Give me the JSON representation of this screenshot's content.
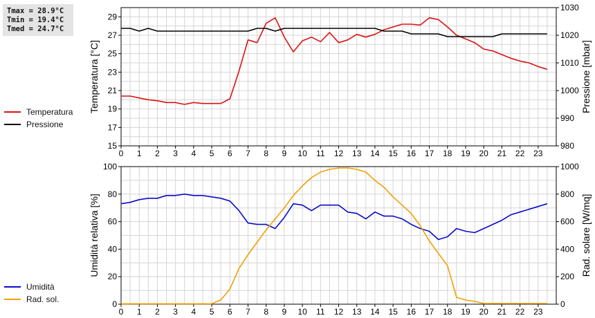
{
  "stats": {
    "tmax": "Tmax = 28.9°C",
    "tmin": "Tmin = 19.4°C",
    "tmed": "Tmed = 24.7°C"
  },
  "colors": {
    "temperatura": "#dd1111",
    "pressione": "#000000",
    "umidita": "#0a0acc",
    "radsol": "#f0a000",
    "grid": "#d4d4d4"
  },
  "chart_data": [
    {
      "type": "line",
      "legend": "left",
      "grid": true,
      "xlim": [
        0,
        24
      ],
      "xticks": [
        0,
        1,
        2,
        3,
        4,
        5,
        6,
        7,
        8,
        9,
        10,
        11,
        12,
        13,
        14,
        15,
        16,
        17,
        18,
        19,
        20,
        21,
        22,
        23
      ],
      "ylabel_left": "Temperatura [°C]",
      "ylim_left": [
        15,
        30
      ],
      "yticks_left": [
        15,
        17,
        19,
        21,
        23,
        25,
        27,
        29
      ],
      "ylabel_right": "Pressione [mbar]",
      "ylim_right": [
        980,
        1030
      ],
      "yticks_right": [
        980,
        990,
        1000,
        1010,
        1020,
        1030
      ],
      "series": [
        {
          "name": "Temperatura",
          "axis": "left",
          "color": "#dd1111",
          "points": [
            [
              0,
              20.4
            ],
            [
              0.5,
              20.4
            ],
            [
              1,
              20.2
            ],
            [
              1.5,
              20.0
            ],
            [
              2,
              19.9
            ],
            [
              2.5,
              19.7
            ],
            [
              3,
              19.7
            ],
            [
              3.5,
              19.5
            ],
            [
              4,
              19.7
            ],
            [
              4.5,
              19.6
            ],
            [
              5,
              19.6
            ],
            [
              5.5,
              19.6
            ],
            [
              6,
              20.1
            ],
            [
              6.5,
              23.1
            ],
            [
              7,
              26.5
            ],
            [
              7.5,
              26.2
            ],
            [
              8,
              28.3
            ],
            [
              8.5,
              28.9
            ],
            [
              9,
              26.8
            ],
            [
              9.5,
              25.2
            ],
            [
              10,
              26.4
            ],
            [
              10.5,
              26.8
            ],
            [
              11,
              26.3
            ],
            [
              11.5,
              27.3
            ],
            [
              12,
              26.2
            ],
            [
              12.5,
              26.5
            ],
            [
              13,
              27.1
            ],
            [
              13.5,
              26.8
            ],
            [
              14,
              27.1
            ],
            [
              14.5,
              27.6
            ],
            [
              15,
              27.9
            ],
            [
              15.5,
              28.2
            ],
            [
              16,
              28.2
            ],
            [
              16.5,
              28.1
            ],
            [
              17,
              28.9
            ],
            [
              17.5,
              28.7
            ],
            [
              18,
              27.9
            ],
            [
              18.5,
              27.0
            ],
            [
              19,
              26.6
            ],
            [
              19.5,
              26.2
            ],
            [
              20,
              25.5
            ],
            [
              20.5,
              25.3
            ],
            [
              21,
              24.9
            ],
            [
              21.5,
              24.5
            ],
            [
              22,
              24.2
            ],
            [
              22.5,
              24.0
            ],
            [
              23,
              23.6
            ],
            [
              23.5,
              23.3
            ]
          ]
        },
        {
          "name": "Pressione",
          "axis": "right",
          "color": "#000000",
          "points": [
            [
              0,
              1022.5
            ],
            [
              0.5,
              1022.5
            ],
            [
              1,
              1021.5
            ],
            [
              1.5,
              1022.5
            ],
            [
              2,
              1021.5
            ],
            [
              2.5,
              1021.5
            ],
            [
              7,
              1021.5
            ],
            [
              7.5,
              1022.5
            ],
            [
              8,
              1022.5
            ],
            [
              8.5,
              1021.5
            ],
            [
              9,
              1022.5
            ],
            [
              14,
              1022.5
            ],
            [
              14.5,
              1021.5
            ],
            [
              15.5,
              1021.5
            ],
            [
              16,
              1020.5
            ],
            [
              17.5,
              1020.5
            ],
            [
              18,
              1019.5
            ],
            [
              20.5,
              1019.5
            ],
            [
              21,
              1020.5
            ],
            [
              23.5,
              1020.5
            ]
          ]
        }
      ]
    },
    {
      "type": "line",
      "legend": "left",
      "grid": true,
      "xlim": [
        0,
        24
      ],
      "xticks": [
        0,
        1,
        2,
        3,
        4,
        5,
        6,
        7,
        8,
        9,
        10,
        11,
        12,
        13,
        14,
        15,
        16,
        17,
        18,
        19,
        20,
        21,
        22,
        23
      ],
      "ylabel_left": "Umidità relativa [%]",
      "ylim_left": [
        0,
        100
      ],
      "yticks_left": [
        0,
        20,
        40,
        60,
        80,
        100
      ],
      "ylabel_right": "Rad. solare [W/mq]",
      "ylim_right": [
        0,
        1000
      ],
      "yticks_right": [
        0,
        200,
        400,
        600,
        800,
        1000
      ],
      "series": [
        {
          "name": "Umidità",
          "axis": "left",
          "color": "#0a0acc",
          "points": [
            [
              0,
              73
            ],
            [
              0.5,
              74
            ],
            [
              1,
              76
            ],
            [
              1.5,
              77
            ],
            [
              2,
              77
            ],
            [
              2.5,
              79
            ],
            [
              3,
              79
            ],
            [
              3.5,
              80
            ],
            [
              4,
              79
            ],
            [
              4.5,
              79
            ],
            [
              5,
              78
            ],
            [
              5.5,
              77
            ],
            [
              6,
              75
            ],
            [
              6.5,
              68
            ],
            [
              7,
              59
            ],
            [
              7.5,
              58
            ],
            [
              8,
              58
            ],
            [
              8.5,
              55
            ],
            [
              9,
              63
            ],
            [
              9.5,
              73
            ],
            [
              10,
              72
            ],
            [
              10.5,
              68
            ],
            [
              11,
              72
            ],
            [
              11.5,
              72
            ],
            [
              12,
              72
            ],
            [
              12.5,
              67
            ],
            [
              13,
              66
            ],
            [
              13.5,
              62
            ],
            [
              14,
              67
            ],
            [
              14.5,
              64
            ],
            [
              15,
              64
            ],
            [
              15.5,
              62
            ],
            [
              16,
              58
            ],
            [
              16.5,
              55
            ],
            [
              17,
              53
            ],
            [
              17.5,
              47
            ],
            [
              18,
              49
            ],
            [
              18.5,
              55
            ],
            [
              19,
              53
            ],
            [
              19.5,
              52
            ],
            [
              20,
              55
            ],
            [
              20.5,
              58
            ],
            [
              21,
              61
            ],
            [
              21.5,
              65
            ],
            [
              22,
              67
            ],
            [
              22.5,
              69
            ],
            [
              23,
              71
            ],
            [
              23.5,
              73
            ]
          ]
        },
        {
          "name": "Rad. sol.",
          "axis": "right",
          "color": "#f0a000",
          "points": [
            [
              0,
              3
            ],
            [
              5,
              3
            ],
            [
              5.5,
              30
            ],
            [
              6,
              110
            ],
            [
              6.5,
              260
            ],
            [
              7,
              360
            ],
            [
              7.5,
              450
            ],
            [
              8,
              540
            ],
            [
              8.5,
              620
            ],
            [
              9,
              700
            ],
            [
              9.5,
              790
            ],
            [
              10,
              860
            ],
            [
              10.5,
              920
            ],
            [
              11,
              960
            ],
            [
              11.5,
              980
            ],
            [
              12,
              990
            ],
            [
              12.5,
              990
            ],
            [
              13,
              980
            ],
            [
              13.5,
              960
            ],
            [
              14,
              900
            ],
            [
              14.5,
              850
            ],
            [
              15,
              780
            ],
            [
              15.5,
              720
            ],
            [
              16,
              660
            ],
            [
              16.5,
              570
            ],
            [
              17,
              460
            ],
            [
              17.5,
              370
            ],
            [
              18,
              280
            ],
            [
              18.5,
              50
            ],
            [
              19,
              30
            ],
            [
              19.5,
              20
            ],
            [
              20,
              5
            ],
            [
              23.5,
              5
            ]
          ]
        }
      ]
    }
  ]
}
